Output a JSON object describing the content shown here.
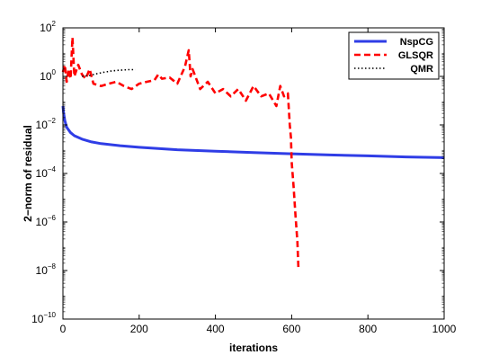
{
  "chart_data": {
    "type": "line",
    "xlabel": "iterations",
    "ylabel": "2−norm of residual",
    "xlim": [
      0,
      1000
    ],
    "ylim": [
      1e-10,
      100
    ],
    "yscale": "log",
    "xticks": [
      0,
      200,
      400,
      600,
      800,
      1000
    ],
    "yticks": [
      {
        "base": "10",
        "exp": "2",
        "value": 100
      },
      {
        "base": "10",
        "exp": "0",
        "value": 1
      },
      {
        "base": "10",
        "exp": "−2",
        "value": 0.01
      },
      {
        "base": "10",
        "exp": "−4",
        "value": 0.0001
      },
      {
        "base": "10",
        "exp": "−6",
        "value": 1e-06
      },
      {
        "base": "10",
        "exp": "−8",
        "value": 1e-08
      },
      {
        "base": "10",
        "exp": "−10",
        "value": 1e-10
      }
    ],
    "legend_position": "top-right",
    "series": [
      {
        "name": "NspCG",
        "color": "#2f3de6",
        "style": "solid",
        "x": [
          0,
          2,
          5,
          10,
          20,
          30,
          50,
          75,
          100,
          150,
          200,
          300,
          400,
          500,
          600,
          700,
          800,
          900,
          1000
        ],
        "y": [
          0.06,
          0.03,
          0.015,
          0.008,
          0.0048,
          0.0036,
          0.0026,
          0.002,
          0.0017,
          0.0014,
          0.0012,
          0.00095,
          0.00082,
          0.00073,
          0.00065,
          0.00058,
          0.00053,
          0.00048,
          0.00045
        ]
      },
      {
        "name": "GLSQR",
        "color": "#ff0000",
        "style": "dashed",
        "x": [
          0,
          5,
          10,
          15,
          20,
          25,
          30,
          40,
          50,
          60,
          70,
          80,
          100,
          120,
          140,
          160,
          180,
          200,
          220,
          240,
          250,
          260,
          280,
          300,
          320,
          330,
          335,
          340,
          360,
          380,
          400,
          420,
          440,
          460,
          480,
          500,
          520,
          540,
          560,
          570,
          580,
          590,
          595,
          598,
          600,
          605,
          610,
          615,
          618
        ],
        "y": [
          1.5,
          3,
          0.6,
          2,
          0.8,
          40,
          1,
          3,
          1.2,
          0.8,
          2,
          0.5,
          0.4,
          0.5,
          0.6,
          0.4,
          0.3,
          0.5,
          0.6,
          0.7,
          1.2,
          0.8,
          0.9,
          0.5,
          2.5,
          12,
          1,
          2,
          0.3,
          0.6,
          0.2,
          0.3,
          0.15,
          0.3,
          0.1,
          0.4,
          0.15,
          0.2,
          0.06,
          0.4,
          0.15,
          0.2,
          0.01,
          0.003,
          0.0003,
          3e-05,
          2e-06,
          1.5e-07,
          1e-08
        ]
      },
      {
        "name": "QMR",
        "color": "#000000",
        "style": "dotted",
        "x": [
          50,
          70,
          90,
          110,
          130,
          150,
          170,
          190
        ],
        "y": [
          1.0,
          1.1,
          1.3,
          1.5,
          1.7,
          1.8,
          1.9,
          1.9
        ]
      }
    ]
  }
}
